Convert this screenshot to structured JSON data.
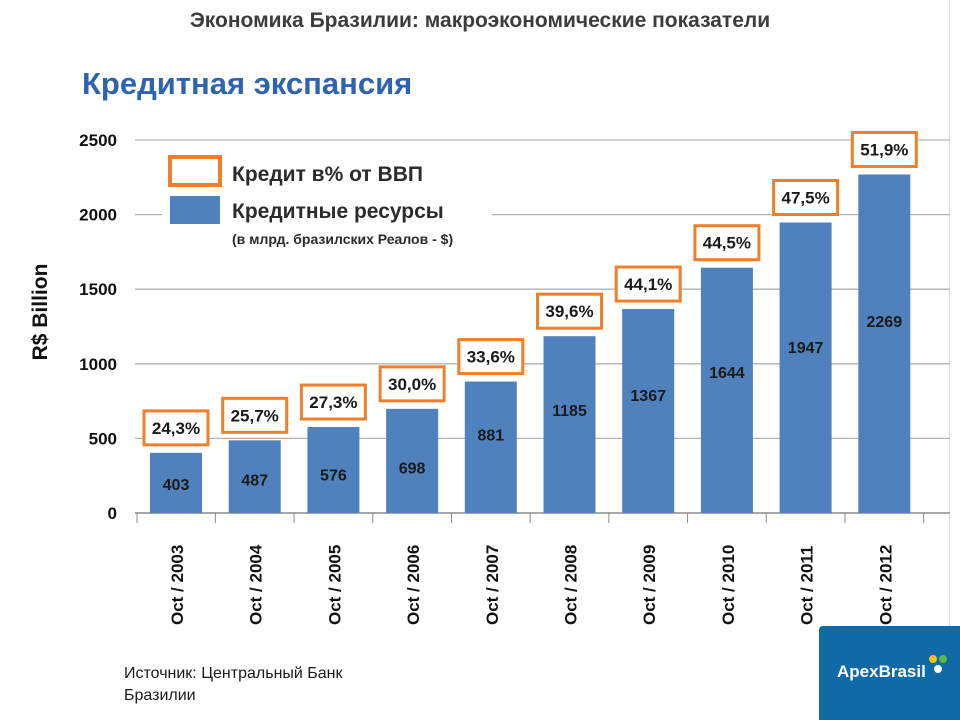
{
  "header": "Экономика Бразилии: макроэкономические показатели",
  "subtitle": "Кредитная экспансия",
  "source": "Источник: Центральный Банк Бразилии",
  "logo_text": "ApexBrasil",
  "colors": {
    "bar": "#4f81bd",
    "box": "#ef7f2a",
    "title": "#2f63b0"
  },
  "chart_data": {
    "type": "bar",
    "categories": [
      "Oct / 2003",
      "Oct / 2004",
      "Oct / 2005",
      "Oct / 2006",
      "Oct / 2007",
      "Oct / 2008",
      "Oct / 2009",
      "Oct / 2010",
      "Oct / 2011",
      "Oct / 2012"
    ],
    "series": [
      {
        "name": "Кредитные ресурсы",
        "values": [
          403,
          487,
          576,
          698,
          881,
          1185,
          1367,
          1644,
          1947,
          2269
        ]
      }
    ],
    "credit_pct_gdp": {
      "name": "Кредит в% от ВВП",
      "labels": [
        "24,3%",
        "25,7%",
        "27,3%",
        "30,0%",
        "33,6%",
        "39,6%",
        "44,1%",
        "44,5%",
        "47,5%",
        "51,9%"
      ]
    },
    "legend": {
      "items": [
        "Кредит в% от ВВП",
        "Кредитные ресурсы"
      ],
      "note": "(в млрд. бразилских Реалов - $)",
      "position": "top-left"
    },
    "ylabel": "R$ Billion",
    "ylim": [
      0,
      2500
    ],
    "yticks": [
      0,
      500,
      1000,
      1500,
      2000,
      2500
    ],
    "grid": true
  }
}
